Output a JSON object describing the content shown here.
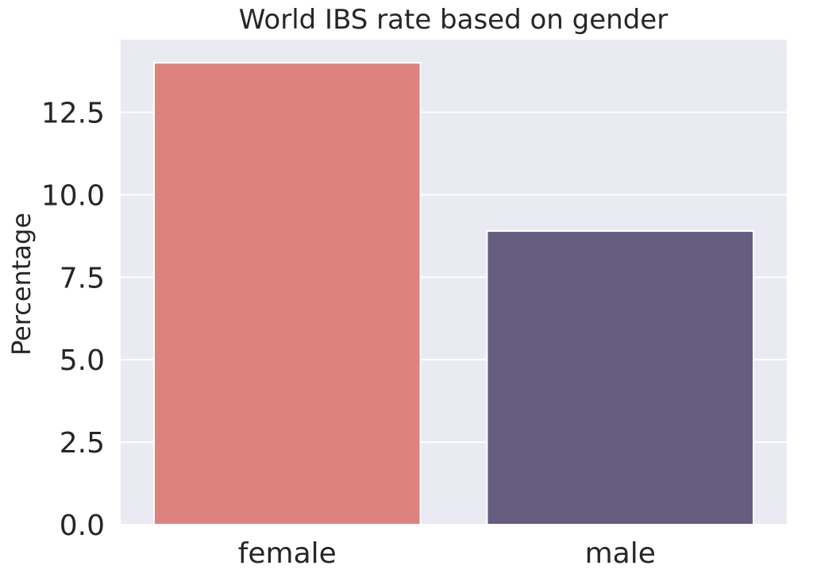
{
  "chart_data": {
    "type": "bar",
    "title": "World IBS rate based on gender",
    "xlabel": "",
    "ylabel": "Percentage",
    "categories": [
      "female",
      "male"
    ],
    "values": [
      14.0,
      8.9
    ],
    "colors": [
      "#dd837d",
      "#675d80"
    ],
    "ylim": [
      0,
      14.7
    ],
    "yticks": [
      "0.0",
      "2.5",
      "5.0",
      "7.5",
      "10.0",
      "12.5"
    ],
    "grid": true,
    "background": "#eaeaf2"
  }
}
